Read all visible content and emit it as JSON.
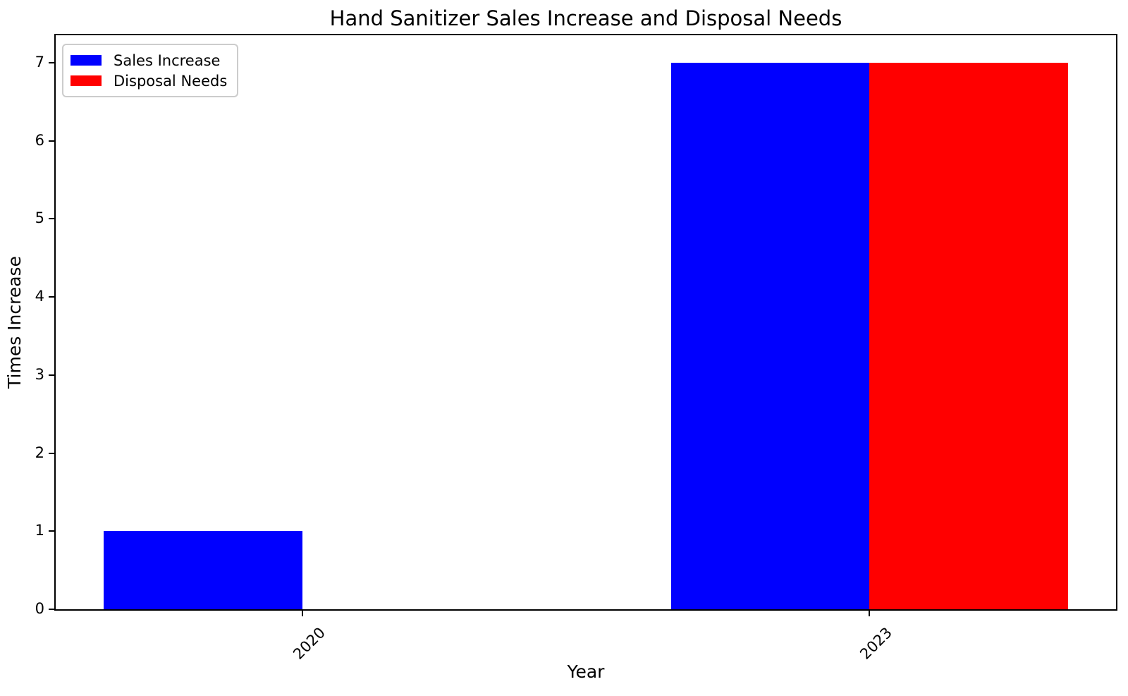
{
  "chart_data": {
    "type": "bar",
    "title": "Hand Sanitizer Sales Increase and Disposal Needs",
    "xlabel": "Year",
    "ylabel": "Times Increase",
    "categories": [
      "2020",
      "2023"
    ],
    "series": [
      {
        "name": "Sales Increase",
        "color": "#0000ff",
        "values": [
          1,
          7
        ]
      },
      {
        "name": "Disposal Needs",
        "color": "#ff0000",
        "values": [
          0,
          7
        ]
      }
    ],
    "bar_width": 0.35,
    "xlim": [
      -0.435,
      1.435
    ],
    "ylim": [
      0,
      7.35
    ],
    "yticks": [
      0,
      1,
      2,
      3,
      4,
      5,
      6,
      7
    ],
    "x_tick_rotation_deg": 45,
    "grid": false,
    "legend_position": "upper left",
    "axis_color": "#000000",
    "background_color": "#ffffff",
    "legend_border_color": "#cccccc"
  }
}
